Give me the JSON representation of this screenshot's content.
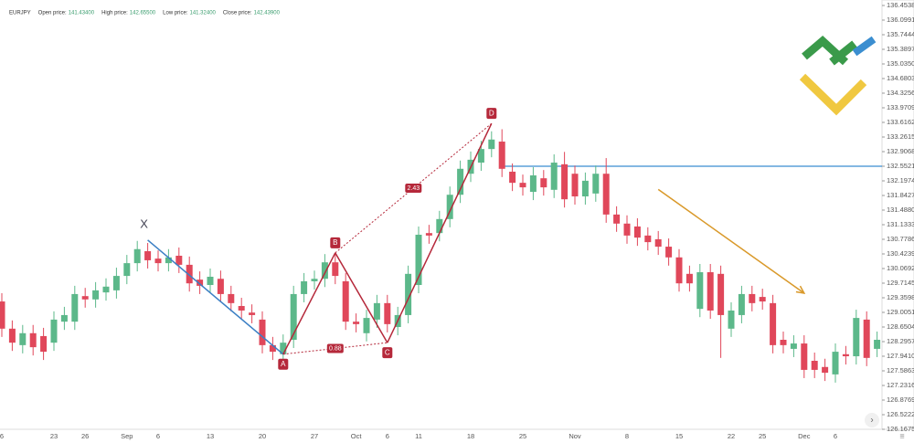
{
  "chart_data": {
    "type": "candlestick",
    "info": {
      "symbol": "EURJPY",
      "fields": [
        {
          "label": "Open price:",
          "value": "141.43400"
        },
        {
          "label": "High price:",
          "value": "142.65500"
        },
        {
          "label": "Low price:",
          "value": "141.32400"
        },
        {
          "label": "Close price:",
          "value": "142.43900"
        }
      ]
    },
    "categories": [
      "6",
      null,
      null,
      null,
      null,
      "23",
      null,
      null,
      "26",
      null,
      null,
      null,
      "Sep",
      null,
      null,
      "6",
      null,
      null,
      null,
      null,
      "13",
      null,
      null,
      null,
      null,
      "20",
      null,
      null,
      null,
      null,
      "27",
      null,
      null,
      null,
      "Oct",
      null,
      null,
      "6",
      null,
      null,
      "11",
      null,
      null,
      null,
      null,
      "18",
      null,
      null,
      null,
      null,
      "25",
      null,
      null,
      null,
      null,
      "Nov",
      null,
      null,
      null,
      null,
      "8",
      null,
      null,
      null,
      null,
      "15",
      null,
      null,
      null,
      null,
      "22",
      null,
      null,
      "25",
      null,
      null,
      null,
      "Dec",
      null,
      null,
      "6",
      null,
      null,
      null,
      null
    ],
    "open": [
      129.27,
      128.61,
      128.21,
      128.5,
      128.43,
      128.27,
      128.78,
      128.78,
      129.4,
      129.32,
      129.49,
      129.54,
      129.89,
      130.2,
      130.49,
      130.31,
      130.2,
      130.38,
      130.16,
      129.8,
      129.67,
      129.82,
      129.45,
      129.16,
      129.0,
      128.83,
      128.21,
      127.99,
      128.34,
      129.45,
      129.76,
      129.82,
      130.22,
      129.76,
      128.78,
      128.5,
      128.83,
      129.23,
      128.65,
      128.94,
      129.67,
      130.93,
      130.93,
      131.27,
      131.86,
      132.37,
      132.64,
      132.97,
      133.15,
      132.42,
      132.15,
      131.93,
      132.26,
      131.98,
      132.6,
      132.37,
      131.82,
      131.89,
      132.37,
      131.38,
      131.16,
      131.09,
      130.87,
      130.78,
      130.6,
      130.34,
      129.94,
      129.09,
      129.98,
      129.94,
      128.61,
      128.94,
      129.45,
      129.38,
      129.23,
      128.34,
      128.12,
      128.25,
      127.83,
      127.68,
      127.5,
      127.99,
      127.94,
      128.83,
      128.12
    ],
    "high": [
      129.47,
      128.81,
      128.7,
      128.7,
      128.63,
      129.03,
      129.14,
      129.65,
      129.6,
      129.74,
      129.83,
      130.09,
      130.4,
      130.74,
      130.69,
      130.51,
      130.54,
      130.58,
      130.36,
      130.0,
      130.07,
      130.02,
      129.65,
      129.36,
      129.2,
      129.03,
      128.41,
      128.47,
      129.65,
      129.96,
      130.02,
      130.42,
      130.42,
      129.96,
      128.98,
      129.07,
      129.43,
      129.43,
      129.14,
      130.14,
      131.09,
      131.13,
      131.47,
      132.06,
      132.69,
      132.91,
      133.17,
      133.4,
      133.45,
      132.62,
      132.35,
      132.53,
      132.46,
      132.84,
      132.9,
      132.57,
      132.4,
      132.57,
      132.75,
      131.58,
      131.36,
      131.29,
      131.07,
      130.98,
      130.8,
      130.54,
      130.14,
      130.18,
      130.18,
      130.14,
      129.25,
      129.65,
      129.65,
      129.58,
      129.43,
      128.54,
      128.45,
      128.45,
      128.03,
      127.88,
      128.25,
      128.19,
      129.07,
      129.03,
      128.54
    ],
    "low": [
      128.41,
      128.07,
      128.01,
      127.96,
      127.85,
      128.07,
      128.58,
      128.58,
      129.12,
      129.12,
      129.29,
      129.34,
      129.69,
      130.0,
      130.07,
      130.0,
      130.0,
      129.96,
      129.51,
      129.45,
      129.47,
      129.25,
      129.03,
      128.85,
      128.74,
      128.01,
      127.85,
      127.79,
      128.14,
      129.25,
      129.56,
      129.62,
      129.69,
      128.58,
      128.52,
      128.3,
      128.63,
      128.52,
      128.45,
      128.74,
      129.47,
      130.67,
      130.73,
      131.07,
      131.66,
      132.17,
      132.44,
      132.77,
      132.29,
      131.95,
      131.84,
      131.73,
      131.84,
      131.78,
      131.55,
      131.62,
      131.62,
      131.69,
      131.18,
      130.96,
      130.67,
      130.62,
      130.51,
      130.4,
      130.14,
      129.51,
      129.51,
      128.89,
      128.85,
      127.9,
      128.41,
      128.74,
      129.03,
      129.07,
      128.01,
      128.01,
      127.92,
      127.41,
      127.41,
      127.34,
      127.3,
      127.74,
      127.74,
      127.7,
      127.92
    ],
    "close": [
      128.61,
      128.27,
      128.5,
      128.16,
      128.05,
      128.83,
      128.94,
      129.45,
      129.32,
      129.54,
      129.63,
      129.89,
      130.2,
      130.54,
      130.27,
      130.2,
      130.34,
      130.16,
      129.71,
      129.65,
      129.87,
      129.45,
      129.23,
      129.05,
      128.94,
      128.21,
      128.05,
      128.27,
      129.45,
      129.76,
      129.82,
      130.22,
      129.89,
      128.78,
      128.72,
      128.87,
      129.23,
      128.72,
      128.94,
      129.94,
      130.89,
      130.87,
      131.27,
      131.86,
      132.49,
      132.71,
      132.97,
      133.2,
      132.49,
      132.15,
      132.04,
      132.33,
      132.04,
      132.64,
      131.75,
      131.82,
      132.2,
      132.37,
      131.38,
      131.16,
      130.87,
      130.82,
      130.71,
      130.6,
      130.34,
      129.71,
      129.71,
      129.98,
      129.05,
      128.94,
      129.05,
      129.45,
      129.23,
      129.27,
      128.21,
      128.21,
      128.25,
      127.61,
      127.61,
      127.54,
      128.05,
      127.94,
      128.87,
      127.9,
      128.34
    ],
    "up_color": "#5cb88a",
    "down_color": "#e0475a",
    "ylim": [
      126.1675,
      136.5868
    ],
    "yticks": [
      {
        "value": 136.4538,
        "label": "136.45380"
      },
      {
        "value": 136.0991,
        "label": "136.09910"
      },
      {
        "value": 135.7444,
        "label": "135.74440"
      },
      {
        "value": 135.3897,
        "label": "135.38970"
      },
      {
        "value": 135.035,
        "label": "135.03500"
      },
      {
        "value": 134.6803,
        "label": "134.68030"
      },
      {
        "value": 134.3256,
        "label": "134.32560"
      },
      {
        "value": 133.9709,
        "label": "133.97090"
      },
      {
        "value": 133.6162,
        "label": "133.61620"
      },
      {
        "value": 133.2615,
        "label": "133.26150"
      },
      {
        "value": 132.9068,
        "label": "132.90680"
      },
      {
        "value": 132.5521,
        "label": "132.55210"
      },
      {
        "value": 132.1974,
        "label": "132.19740"
      },
      {
        "value": 131.8427,
        "label": "131.84270"
      },
      {
        "value": 131.488,
        "label": "131.48800"
      },
      {
        "value": 131.1333,
        "label": "131.13330"
      },
      {
        "value": 130.7786,
        "label": "130.77860"
      },
      {
        "value": 130.4239,
        "label": "130.42390"
      },
      {
        "value": 130.0692,
        "label": "130.06920"
      },
      {
        "value": 129.7145,
        "label": "129.71450"
      },
      {
        "value": 129.3598,
        "label": "129.35980"
      },
      {
        "value": 129.0051,
        "label": "129.00510"
      },
      {
        "value": 128.6504,
        "label": "128.65040"
      },
      {
        "value": 128.2957,
        "label": "128.29570"
      },
      {
        "value": 127.941,
        "label": "127.94100"
      },
      {
        "value": 127.5863,
        "label": "127.58630"
      },
      {
        "value": 127.2316,
        "label": "127.23160"
      },
      {
        "value": 126.8769,
        "label": "126.87690"
      },
      {
        "value": 126.5222,
        "label": "126.52220"
      },
      {
        "value": 126.1675,
        "label": "126.16750"
      }
    ],
    "level": {
      "value": 132.5521,
      "color": "#3b8ed0"
    },
    "pattern": {
      "points": [
        {
          "label": "X",
          "index": 14,
          "price": 130.76
        },
        {
          "label": "A",
          "index": 27,
          "price": 127.99
        },
        {
          "label": "B",
          "index": 32,
          "price": 130.45
        },
        {
          "label": "C",
          "index": 37,
          "price": 128.27
        },
        {
          "label": "D",
          "index": 47,
          "price": 133.59
        }
      ],
      "xa_color": "#3b7fc4",
      "color": "#b5283a",
      "ratios": [
        {
          "label": "0.88",
          "from": "A",
          "to": "C"
        },
        {
          "label": "2.43",
          "from": "B",
          "to": "D"
        }
      ]
    },
    "arrow": {
      "from": {
        "index": 63,
        "price": 131.99
      },
      "to": {
        "index": 77,
        "price": 129.47
      },
      "color": "#d9992a"
    }
  }
}
